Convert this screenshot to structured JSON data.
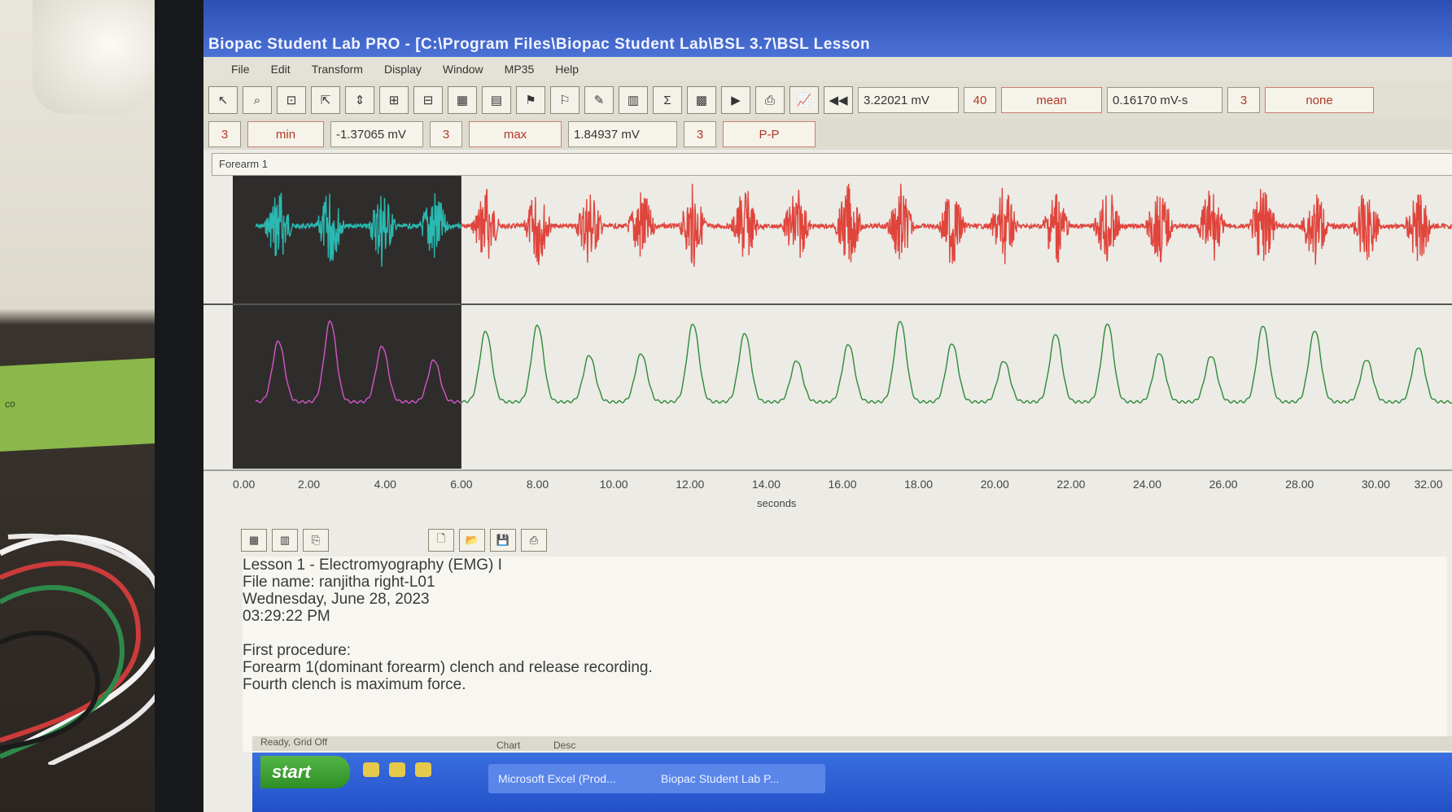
{
  "window": {
    "title": "Biopac Student Lab PRO - [C:\\Program Files\\Biopac Student Lab\\BSL 3.7\\BSL Lesson"
  },
  "menu": [
    "File",
    "Edit",
    "Transform",
    "Display",
    "Window",
    "MP35",
    "Help"
  ],
  "toolbar": {
    "icons": [
      "cursor-icon",
      "zoom-icon",
      "select-icon",
      "arrow-icon",
      "autoscale-icon",
      "overlap-icon",
      "split-icon",
      "grid-icon",
      "grid2-icon",
      "marker-icon",
      "marker2-icon",
      "journal-icon",
      "grid3-icon",
      "sum-icon",
      "table-icon",
      "flag-icon",
      "print-icon",
      "chart-icon",
      "rewind-icon"
    ],
    "meas_row1": [
      {
        "label": "3.22021 mV",
        "num": "40",
        "func": "mean"
      },
      {
        "label": "0.16170 mV-s",
        "num": "3",
        "func": "none"
      }
    ]
  },
  "measurements": [
    {
      "num": "3",
      "func": "min",
      "value": "-1.37065 mV"
    },
    {
      "num": "3",
      "func": "max",
      "value": "1.84937 mV"
    },
    {
      "num": "3",
      "func": "P-P",
      "value": ""
    }
  ],
  "channel_label": "Forearm 1",
  "axis": {
    "ticks": [
      "0.00",
      "2.00",
      "4.00",
      "6.00",
      "8.00",
      "10.00",
      "12.00",
      "14.00",
      "16.00",
      "18.00",
      "20.00",
      "22.00",
      "24.00",
      "26.00",
      "28.00",
      "30.00",
      "32.00"
    ],
    "unit": "seconds"
  },
  "colors": {
    "emg_selected": "#2ab8b0",
    "emg": "#e0453c",
    "integrated_selected": "#d356c8",
    "integrated": "#2f8a37",
    "selection_bg": "#2f2d2c"
  },
  "journal": {
    "lines": [
      "Lesson 1 - Electromyography (EMG) I",
      "File name:  ranjitha right-L01",
      "Wednesday, June 28, 2023",
      "03:29:22 PM",
      "",
      "First procedure:",
      "Forearm 1(dominant forearm) clench and release recording.",
      "Fourth clench is maximum force."
    ]
  },
  "status": {
    "text": "Ready, Grid Off",
    "hint1": "Chart",
    "hint2": "Desc"
  },
  "taskbar": {
    "start": "start",
    "tasks": [
      "Microsoft Excel (Prod...",
      "Biopac Student Lab P..."
    ]
  },
  "wall": {
    "card_text": "co"
  }
}
